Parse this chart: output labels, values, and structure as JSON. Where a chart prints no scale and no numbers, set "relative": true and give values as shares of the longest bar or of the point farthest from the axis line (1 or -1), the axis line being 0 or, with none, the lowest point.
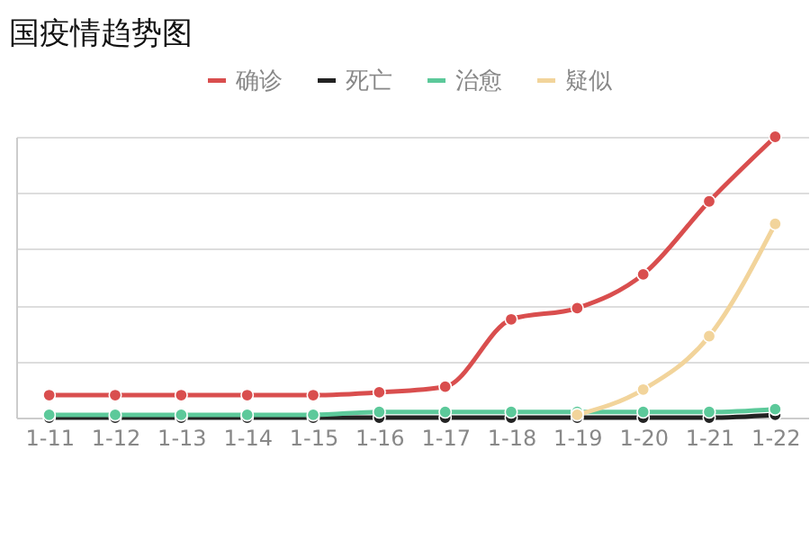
{
  "chart_data": {
    "type": "line",
    "title": "国疫情趋势图",
    "relative": true,
    "grid": "y",
    "legend": "top",
    "marker": "circle",
    "categories": [
      "1-11",
      "1-12",
      "1-13",
      "1-14",
      "1-15",
      "1-16",
      "1-17",
      "1-18",
      "1-19",
      "1-20",
      "1-21",
      "1-22"
    ],
    "series": [
      {
        "name": "确诊",
        "color": "#d94e4e",
        "values": [
          0.08,
          0.08,
          0.08,
          0.08,
          0.08,
          0.09,
          0.11,
          0.35,
          0.39,
          0.51,
          0.77,
          1
        ]
      },
      {
        "name": "死亡",
        "color": "#222222",
        "values": [
          0,
          0,
          0,
          0,
          0,
          0,
          0,
          0,
          0,
          0,
          0,
          0.01
        ]
      },
      {
        "name": "治愈",
        "color": "#5cc99a",
        "values": [
          0.01,
          0.01,
          0.01,
          0.01,
          0.01,
          0.02,
          0.02,
          0.02,
          0.02,
          0.02,
          0.02,
          0.03
        ]
      },
      {
        "name": "疑似",
        "color": "#f2d49b",
        "values": [
          null,
          null,
          null,
          null,
          null,
          null,
          null,
          null,
          0.01,
          0.1,
          0.29,
          0.69
        ]
      }
    ]
  }
}
